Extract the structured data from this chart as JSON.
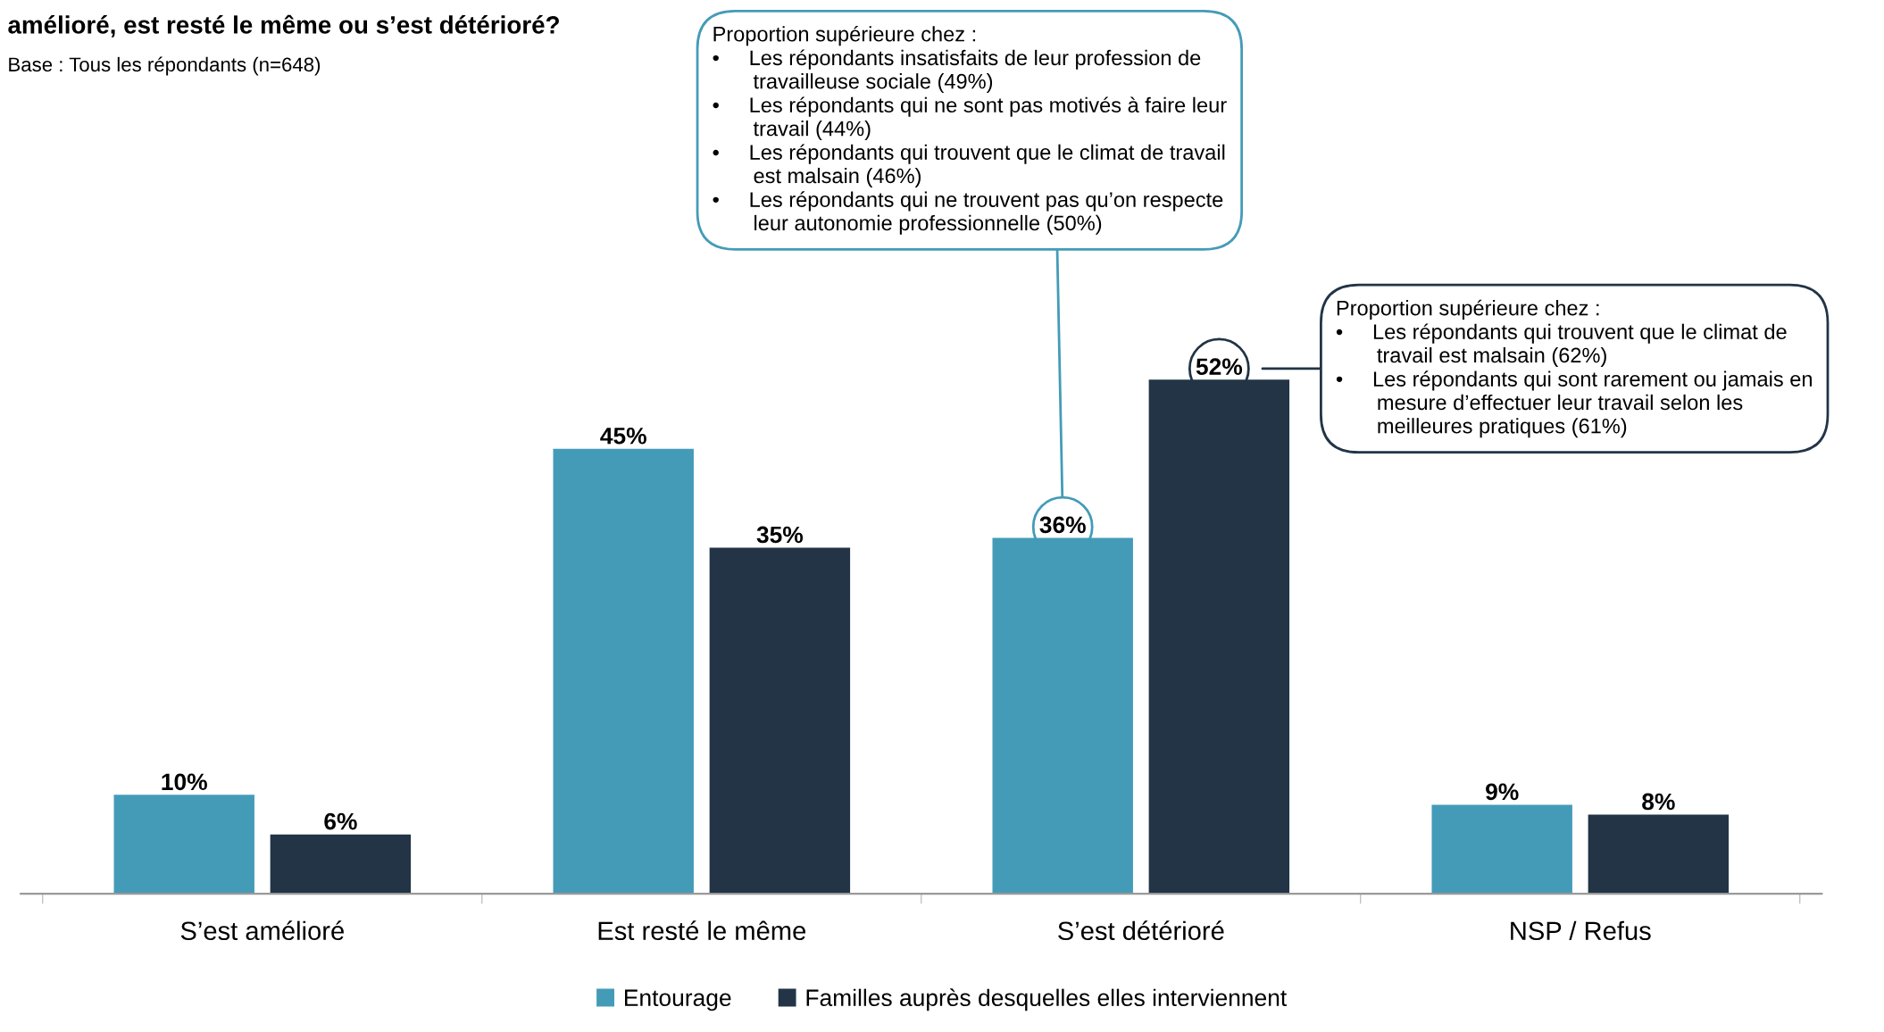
{
  "chart_data": {
    "type": "bar",
    "title": "amélioré, est resté le même ou s’est détérioré?",
    "subtitle": "Base : Tous les répondants (n=648)",
    "categories": [
      "S’est amélioré",
      "Est resté le même",
      "S’est détérioré",
      "NSP / Refus"
    ],
    "series": [
      {
        "name": "Entourage",
        "color": "#449bb8",
        "values": [
          10,
          45,
          36,
          9
        ],
        "value_labels": [
          "10%",
          "45%",
          "36%",
          "9%"
        ]
      },
      {
        "name": "Familles auprès desquelles elles interviennent",
        "color": "#223446",
        "values": [
          6,
          35,
          52,
          8
        ],
        "value_labels": [
          "6%",
          "35%",
          "52%",
          "8%"
        ]
      }
    ],
    "annotations": [
      "Proportion supérieure chez :\n•     Les répondants insatisfaits de leur profession de\n       travailleuse sociale (49%)\n•     Les répondants qui ne sont pas motivés à faire leur\n       travail (44%)\n•     Les répondants qui trouvent que le climat de travail\n       est malsain (46%)\n•     Les répondants qui ne trouvent pas qu’on respecte\n       leur autonomie professionnelle (50%)",
      "Proportion supérieure chez :\n•     Les répondants qui trouvent que le climat de\n       travail est malsain (62%)\n•     Les répondants qui sont rarement ou jamais en\n       mesure d’effectuer leur travail selon les\n       meilleures pratiques (61%)"
    ],
    "legend": "bottom",
    "tick_labels": "x",
    "grid": false
  }
}
